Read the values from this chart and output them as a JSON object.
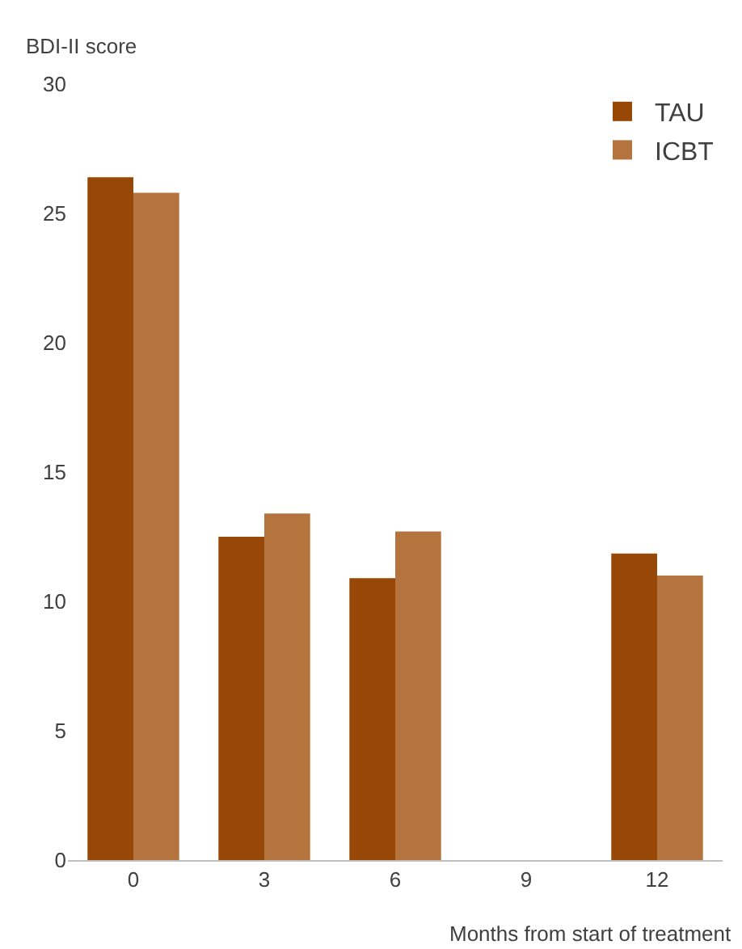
{
  "chart_data": {
    "type": "bar",
    "ylabel": "BDI-II score",
    "xlabel": "Months from start of treatment",
    "categories": [
      "0",
      "3",
      "6",
      "9",
      "12"
    ],
    "series": [
      {
        "name": "TAU",
        "color": "#974706",
        "values": [
          26.4,
          12.5,
          10.9,
          null,
          11.85
        ]
      },
      {
        "name": "ICBT",
        "color": "#b5733d",
        "values": [
          25.8,
          13.4,
          12.7,
          null,
          11.0
        ]
      }
    ],
    "ylim": [
      0,
      30
    ],
    "yticks": [
      0,
      5,
      10,
      15,
      20,
      25,
      30
    ],
    "grid": false,
    "legend": "top right"
  }
}
